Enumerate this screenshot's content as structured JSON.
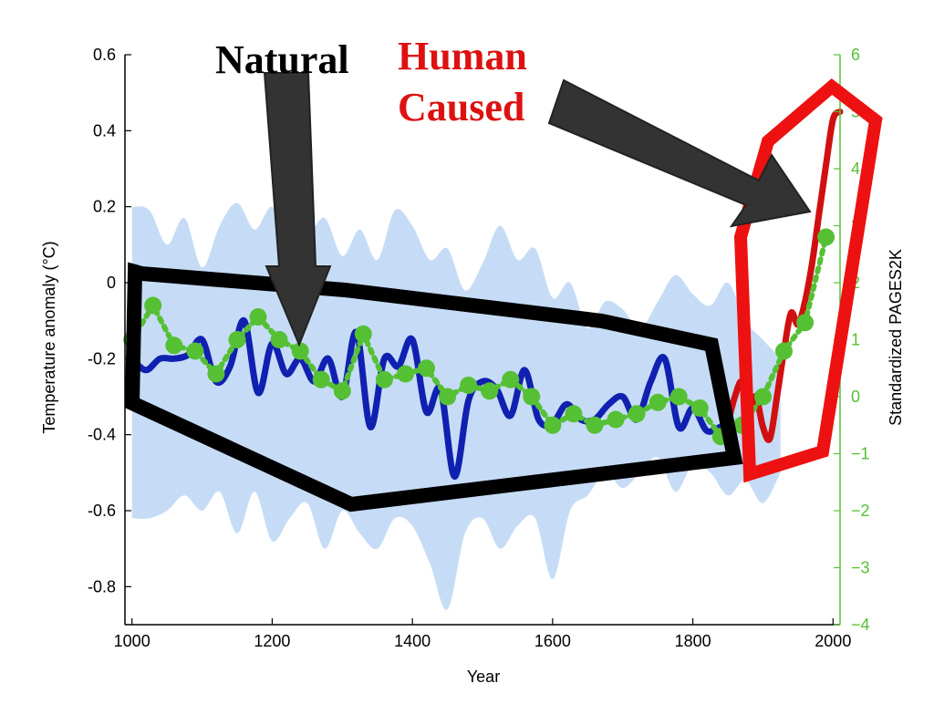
{
  "chart_data": {
    "type": "line",
    "xlabel": "Year",
    "ylabel": "Temperature anomaly (°C)",
    "ylabel_right": "Standardized PAGES2K",
    "xlim": [
      990,
      2010
    ],
    "ylim": [
      -0.9,
      0.6
    ],
    "ylim_right": [
      -4,
      6
    ],
    "x_ticks": [
      "1000",
      "1200",
      "1400",
      "1600",
      "1800",
      "2000"
    ],
    "y_ticks": [
      "0.6",
      "0.4",
      "0.2",
      "0",
      "-0.2",
      "-0.4",
      "-0.6",
      "-0.8"
    ],
    "y_ticks_right": [
      "6",
      "5",
      "4",
      "3",
      "2",
      "1",
      "0",
      "−1",
      "−2",
      "−3",
      "−4"
    ],
    "colors": {
      "reconstruction": "#1020b0",
      "instrumental": "#d01010",
      "pages2k": "#55c034",
      "uncertainty": "#c6dcf6",
      "right_axis": "#55c034",
      "highlight_human": "#ee1111",
      "highlight_natural": "#000000",
      "arrow": "#333333"
    },
    "annotations": [
      {
        "text": "Natural",
        "color": "#000000"
      },
      {
        "text": "Human",
        "color": "#dd1111"
      },
      {
        "text": "Caused",
        "color": "#dd1111"
      }
    ],
    "series": [
      {
        "axis": "left",
        "x": [
          1000,
          1020,
          1040,
          1060,
          1080,
          1100,
          1120,
          1140,
          1160,
          1180,
          1200,
          1220,
          1240,
          1260,
          1280,
          1300,
          1320,
          1340,
          1360,
          1380,
          1400,
          1420,
          1440,
          1460,
          1480,
          1500,
          1520,
          1540,
          1560,
          1580,
          1600,
          1620,
          1640,
          1660,
          1680,
          1700,
          1720,
          1740,
          1760,
          1780,
          1800,
          1820,
          1840,
          1850
        ],
        "y": [
          -0.2,
          -0.23,
          -0.2,
          -0.2,
          -0.19,
          -0.15,
          -0.26,
          -0.22,
          -0.1,
          -0.29,
          -0.16,
          -0.24,
          -0.2,
          -0.26,
          -0.2,
          -0.3,
          -0.13,
          -0.38,
          -0.2,
          -0.22,
          -0.15,
          -0.34,
          -0.28,
          -0.51,
          -0.31,
          -0.26,
          -0.28,
          -0.35,
          -0.23,
          -0.36,
          -0.37,
          -0.32,
          -0.36,
          -0.36,
          -0.32,
          -0.3,
          -0.36,
          -0.26,
          -0.2,
          -0.38,
          -0.33,
          -0.39,
          -0.38,
          -0.39
        ]
      },
      {
        "axis": "left",
        "x": [
          1850,
          1860,
          1870,
          1880,
          1890,
          1900,
          1910,
          1920,
          1930,
          1940,
          1950,
          1960,
          1970,
          1980,
          1990,
          2000,
          2010
        ],
        "y": [
          -0.37,
          -0.3,
          -0.26,
          -0.33,
          -0.3,
          -0.38,
          -0.41,
          -0.3,
          -0.18,
          -0.08,
          -0.11,
          -0.05,
          0.05,
          0.18,
          0.31,
          0.43,
          0.45
        ]
      },
      {
        "axis": "right",
        "x": [
          1000,
          1030,
          1060,
          1090,
          1120,
          1150,
          1180,
          1210,
          1240,
          1270,
          1300,
          1330,
          1360,
          1390,
          1420,
          1450,
          1480,
          1510,
          1540,
          1570,
          1600,
          1630,
          1660,
          1690,
          1720,
          1750,
          1780,
          1810,
          1840,
          1870,
          1900,
          1930,
          1960,
          1990
        ],
        "y": [
          1.0,
          1.6,
          0.9,
          0.8,
          0.4,
          1.0,
          1.4,
          1.0,
          0.8,
          0.3,
          0.1,
          1.1,
          0.3,
          0.4,
          0.5,
          0.0,
          0.2,
          0.1,
          0.3,
          0.0,
          -0.5,
          -0.3,
          -0.5,
          -0.4,
          -0.3,
          -0.1,
          0.0,
          -0.2,
          -0.7,
          -0.5,
          0.0,
          0.8,
          1.3,
          2.8
        ]
      }
    ],
    "uncertainty_band": {
      "x": [
        1000,
        1025,
        1050,
        1075,
        1100,
        1125,
        1150,
        1175,
        1200,
        1225,
        1250,
        1275,
        1300,
        1325,
        1350,
        1375,
        1400,
        1425,
        1450,
        1475,
        1500,
        1525,
        1550,
        1575,
        1600,
        1625,
        1650,
        1675,
        1700,
        1725,
        1750,
        1775,
        1800,
        1825,
        1850,
        1875,
        1900,
        1925
      ],
      "upper": [
        0.2,
        0.19,
        0.1,
        0.17,
        0.04,
        0.15,
        0.21,
        0.14,
        0.2,
        0.11,
        0.12,
        0.17,
        0.07,
        0.14,
        0.06,
        0.19,
        0.15,
        0.06,
        0.09,
        -0.02,
        0.05,
        0.15,
        0.06,
        0.09,
        -0.04,
        0.0,
        -0.12,
        -0.05,
        -0.07,
        -0.12,
        -0.05,
        0.02,
        -0.03,
        -0.06,
        0.0,
        -0.1,
        -0.15,
        -0.2
      ],
      "lower": [
        -0.62,
        -0.62,
        -0.6,
        -0.56,
        -0.6,
        -0.55,
        -0.66,
        -0.55,
        -0.68,
        -0.62,
        -0.58,
        -0.7,
        -0.6,
        -0.66,
        -0.7,
        -0.62,
        -0.64,
        -0.74,
        -0.86,
        -0.66,
        -0.62,
        -0.7,
        -0.64,
        -0.62,
        -0.78,
        -0.6,
        -0.56,
        -0.5,
        -0.54,
        -0.5,
        -0.46,
        -0.55,
        -0.48,
        -0.5,
        -0.56,
        -0.52,
        -0.58,
        -0.5
      ]
    }
  }
}
